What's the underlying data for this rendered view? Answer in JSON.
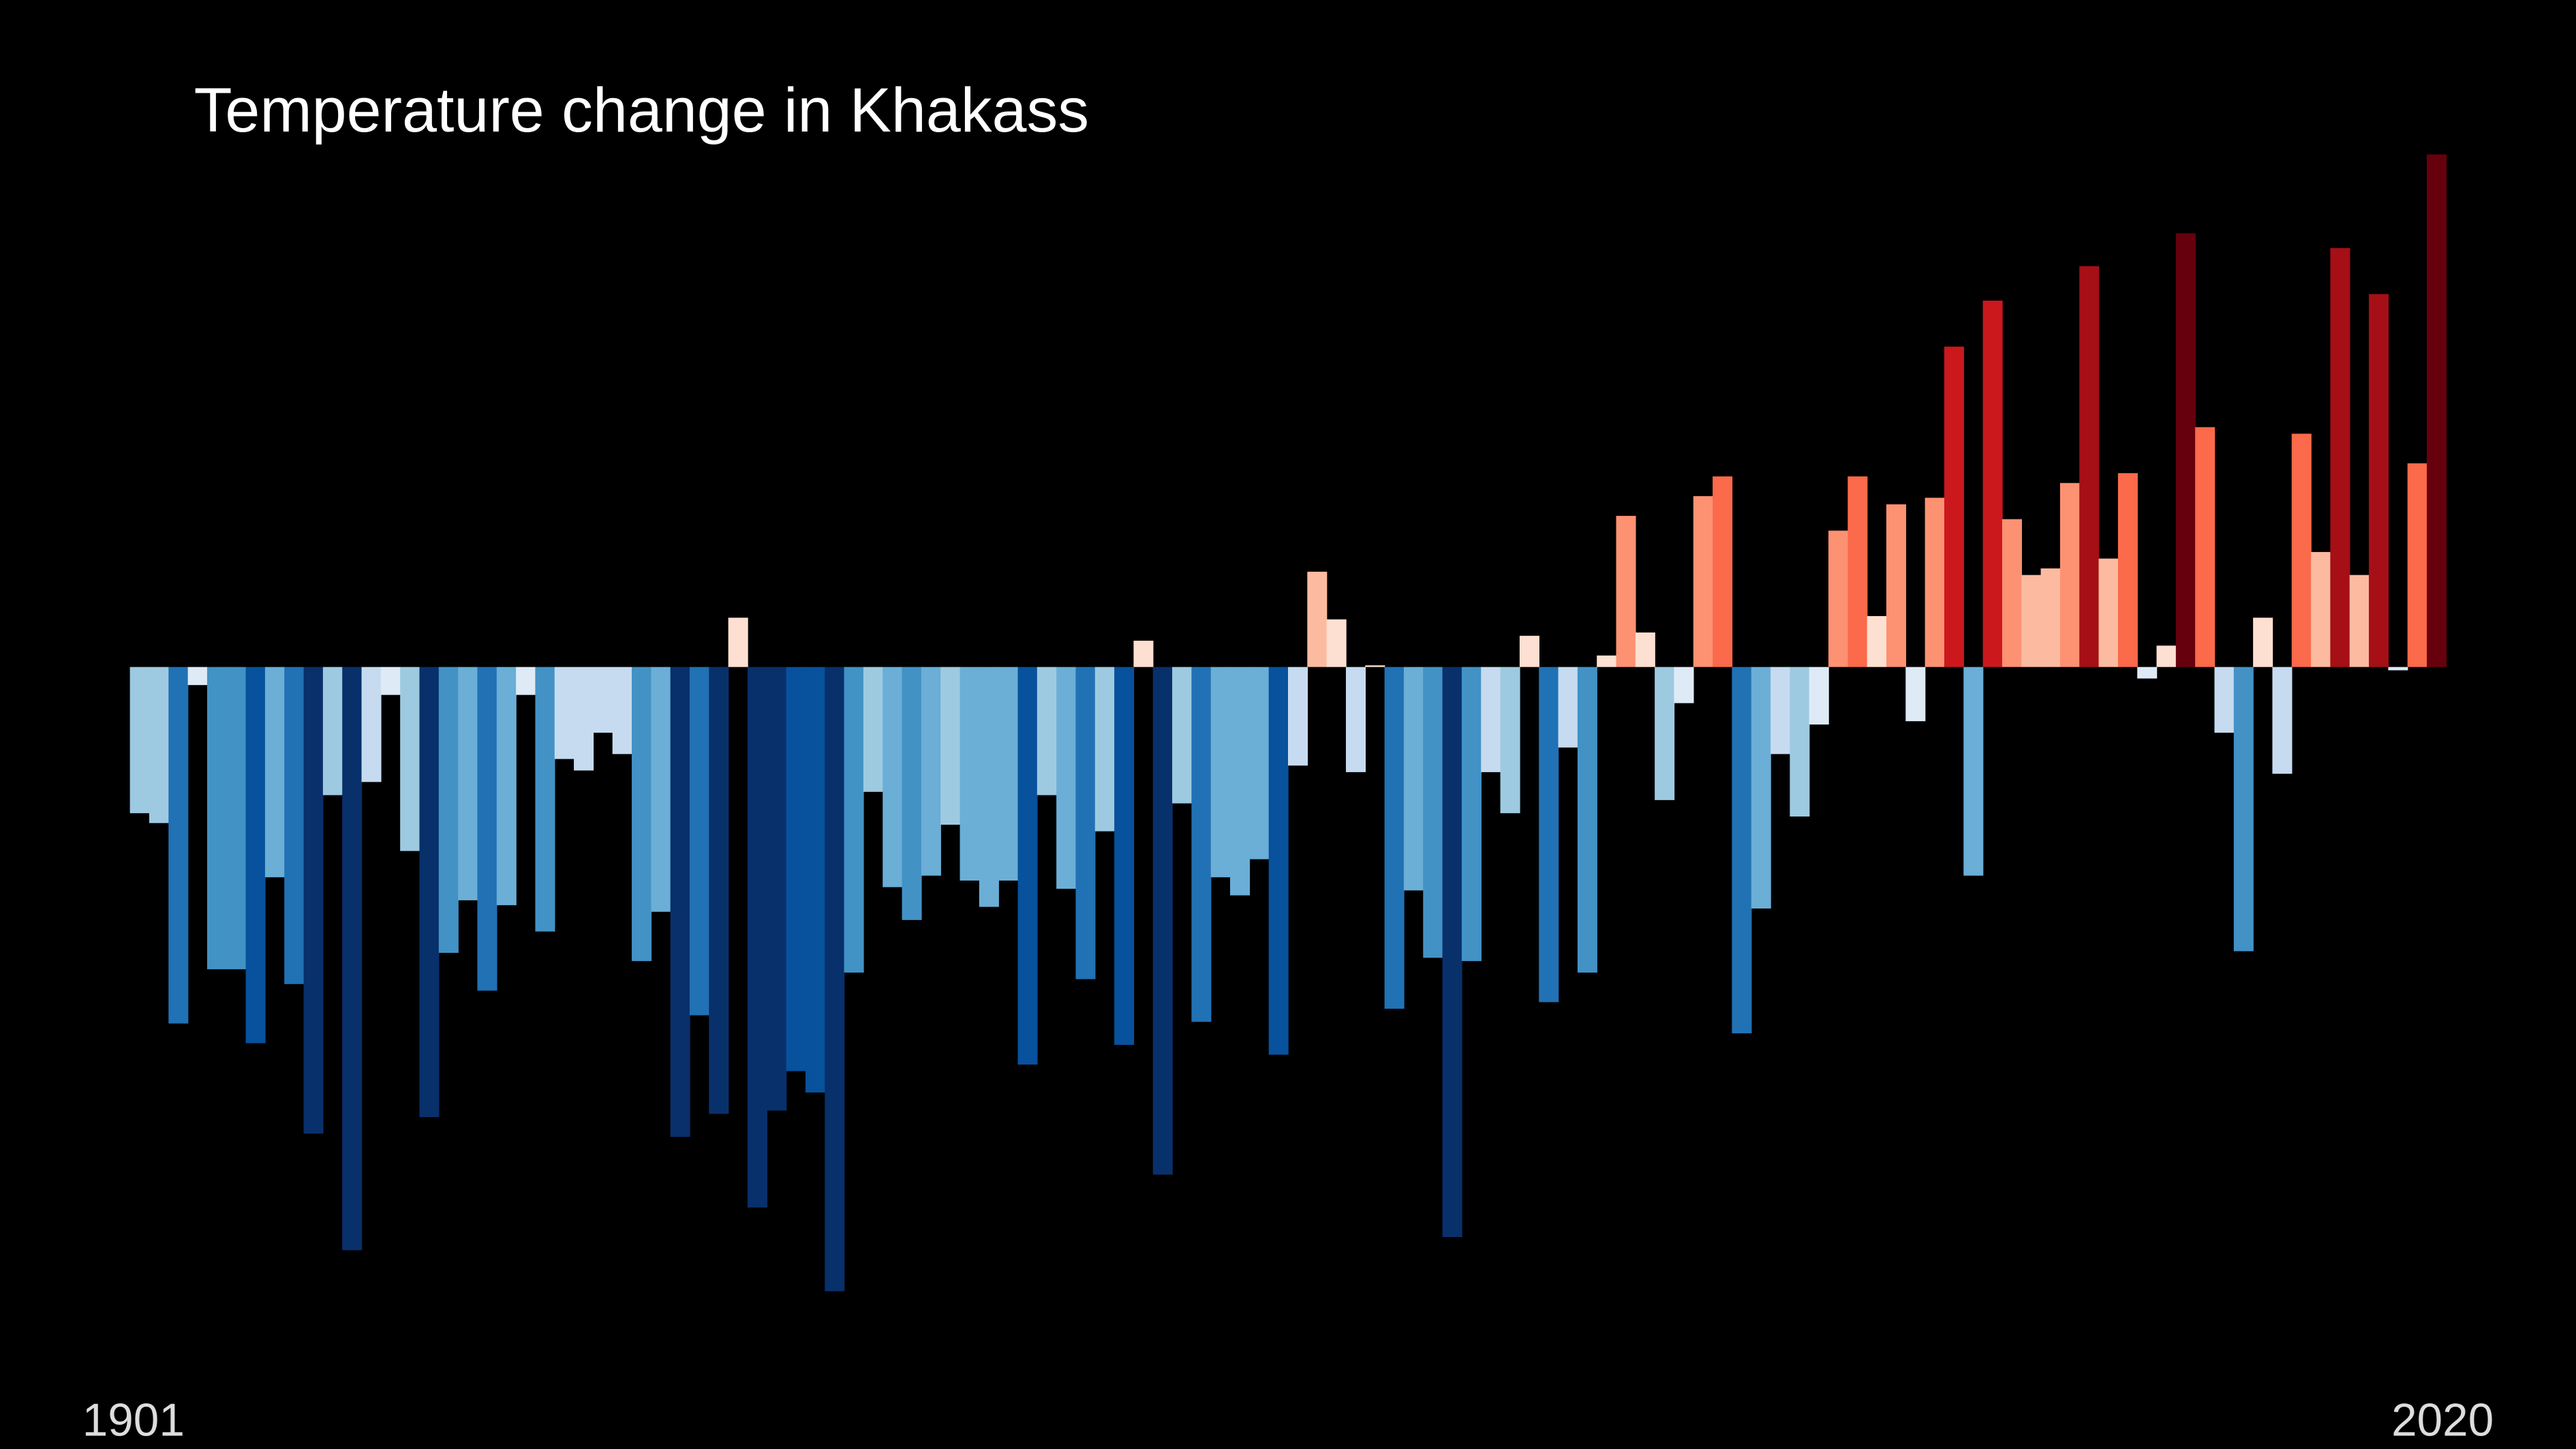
{
  "chart_data": {
    "type": "bar",
    "title": "Temperature change in Khakass",
    "categories": [
      1901,
      null,
      null,
      null,
      null,
      null,
      null,
      null,
      null,
      null,
      null,
      null,
      null,
      null,
      null,
      null,
      null,
      null,
      null,
      null,
      null,
      null,
      null,
      null,
      null,
      null,
      null,
      null,
      null,
      null,
      null,
      null,
      null,
      null,
      null,
      null,
      null,
      null,
      null,
      null,
      null,
      null,
      null,
      null,
      null,
      null,
      null,
      null,
      null,
      null,
      null,
      null,
      null,
      null,
      null,
      null,
      null,
      null,
      null,
      null,
      null,
      null,
      null,
      null,
      null,
      null,
      null,
      null,
      null,
      null,
      null,
      null,
      null,
      null,
      null,
      null,
      null,
      null,
      null,
      null,
      null,
      null,
      null,
      null,
      null,
      null,
      null,
      null,
      null,
      null,
      null,
      null,
      null,
      null,
      null,
      null,
      null,
      null,
      null,
      null,
      null,
      null,
      null,
      null,
      null,
      null,
      null,
      null,
      null,
      null,
      null,
      null,
      null,
      null,
      null,
      null,
      null,
      null,
      null,
      2020
    ],
    "values": [
      -0.89,
      -0.95,
      -2.17,
      -0.11,
      -1.84,
      -1.84,
      -2.29,
      -1.28,
      -1.93,
      -2.84,
      -0.78,
      -3.55,
      -0.7,
      -0.17,
      -1.12,
      -2.74,
      -1.74,
      -1.42,
      -1.97,
      -1.45,
      -0.17,
      -1.61,
      -0.56,
      -0.63,
      -0.4,
      -0.53,
      -1.79,
      -1.49,
      -2.86,
      -2.12,
      -2.72,
      0.3,
      -3.29,
      -2.7,
      -2.46,
      -2.59,
      -3.8,
      -1.86,
      -0.76,
      -1.34,
      -1.54,
      -1.27,
      -0.96,
      -1.3,
      -1.46,
      -1.3,
      -2.42,
      -0.78,
      -1.35,
      -1.9,
      -1.0,
      -2.3,
      0.16,
      -3.09,
      -0.83,
      -2.16,
      -1.28,
      -1.39,
      -1.17,
      -2.36,
      -0.6,
      0.58,
      0.29,
      -0.64,
      0.01,
      -2.08,
      -1.36,
      -1.77,
      -3.47,
      -1.79,
      -0.64,
      -0.89,
      0.19,
      -2.04,
      -0.49,
      -1.86,
      0.07,
      0.92,
      0.21,
      -0.81,
      -0.22,
      1.04,
      1.16,
      -2.23,
      -1.47,
      -0.53,
      -0.91,
      -0.35,
      0.83,
      1.16,
      0.31,
      0.99,
      -0.33,
      1.03,
      1.95,
      -1.27,
      2.23,
      0.9,
      0.56,
      0.6,
      1.12,
      2.44,
      0.66,
      1.18,
      -0.07,
      0.13,
      2.64,
      1.46,
      -0.4,
      -1.73,
      0.3,
      -0.65,
      1.42,
      0.7,
      2.55,
      0.56,
      2.27,
      -0.02,
      1.24,
      3.12
    ],
    "ylim": [
      -4.0,
      3.3
    ],
    "color_range": [
      -3.0,
      3.0
    ],
    "colors": [
      "#08306b",
      "#08519c",
      "#2171b5",
      "#4292c6",
      "#6baed6",
      "#9ecae1",
      "#c6dbef",
      "#deebf7",
      "#fee0d2",
      "#fcbba1",
      "#fc9272",
      "#fb6a4a",
      "#ef3b2c",
      "#cb181d",
      "#a50f15",
      "#67000d"
    ]
  }
}
